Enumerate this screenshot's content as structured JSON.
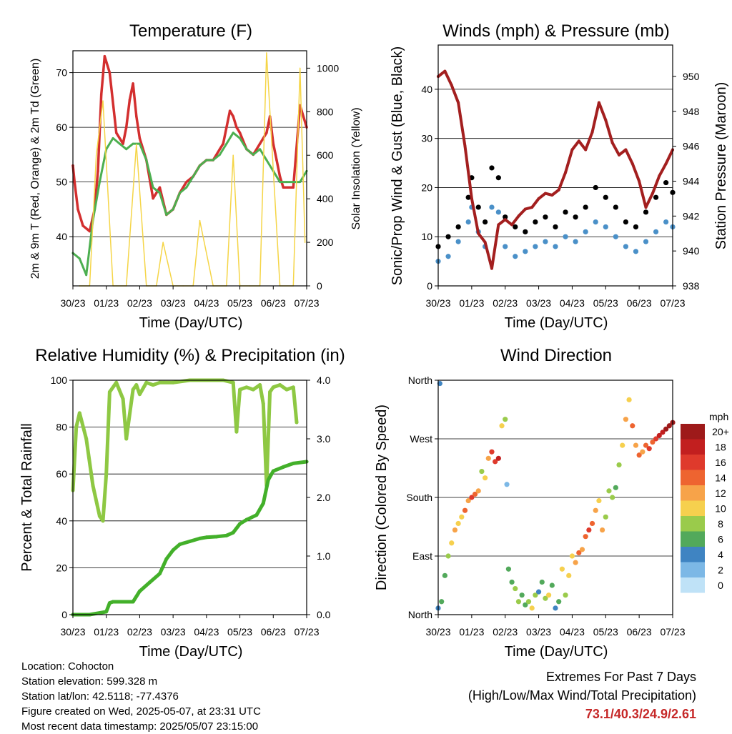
{
  "chart_data": [
    {
      "type": "line",
      "title": "Temperature (F)",
      "xlabel": "Time (Day/UTC)",
      "ylabel": "2m & 9m T (Red, Orange) & 2m Td (Green)",
      "ylabel_right": "Solar Insolation (Yellow)",
      "categories": [
        "30/23",
        "01/23",
        "02/23",
        "03/23",
        "04/23",
        "05/23",
        "06/23",
        "07/23"
      ],
      "ylim": [
        31,
        74
      ],
      "yticks": [
        40,
        50,
        60,
        70
      ],
      "ylim_right": [
        0,
        1080
      ],
      "yticks_right": [
        0,
        200,
        400,
        600,
        800,
        1000
      ],
      "grid": true,
      "series": [
        {
          "name": "2m T",
          "color": "#d32f2f",
          "x": [
            0,
            0.05,
            0.15,
            0.3,
            0.5,
            0.65,
            0.75,
            0.85,
            0.95,
            1.1,
            1.3,
            1.5,
            1.6,
            1.7,
            1.8,
            1.9,
            2.0,
            2.2,
            2.4,
            2.6,
            2.8,
            3.0,
            3.2,
            3.4,
            3.6,
            3.8,
            4.0,
            4.2,
            4.4,
            4.5,
            4.6,
            4.7,
            4.8,
            4.9,
            5.0,
            5.2,
            5.4,
            5.6,
            5.8,
            5.9,
            6.0,
            6.1,
            6.2,
            6.3,
            6.4,
            6.6,
            6.8,
            7.0
          ],
          "values": [
            53,
            50,
            45,
            42,
            41,
            45,
            52,
            66,
            73,
            70,
            59,
            57,
            60,
            65,
            68,
            62,
            58,
            54,
            47,
            49,
            44,
            45,
            48,
            50,
            51,
            53,
            54,
            54,
            56,
            57,
            60,
            63,
            62,
            60,
            59,
            56,
            55,
            57,
            59,
            62,
            57,
            54,
            51,
            49,
            49,
            49,
            64,
            60
          ]
        },
        {
          "name": "2m Td",
          "color": "#4caf50",
          "x": [
            0,
            0.2,
            0.4,
            0.6,
            0.8,
            1.0,
            1.2,
            1.4,
            1.6,
            1.8,
            2.0,
            2.2,
            2.4,
            2.6,
            2.8,
            3.0,
            3.2,
            3.4,
            3.6,
            3.8,
            4.0,
            4.2,
            4.4,
            4.6,
            4.8,
            5.0,
            5.2,
            5.4,
            5.6,
            5.8,
            6.0,
            6.2,
            6.4,
            6.6,
            6.8,
            7.0
          ],
          "values": [
            37,
            36,
            33,
            43,
            50,
            56,
            58,
            57,
            56,
            57,
            57,
            54,
            49,
            48,
            44,
            45,
            48,
            49,
            51,
            53,
            54,
            54,
            55,
            57,
            59,
            58,
            56,
            55,
            56,
            54,
            52,
            50,
            50,
            50,
            50,
            52
          ]
        },
        {
          "name": "Solar Insolation",
          "color": "#f5d547",
          "axis": "right",
          "x": [
            0.2,
            0.5,
            0.7,
            0.9,
            1.2,
            1.6,
            1.9,
            2.2,
            2.5,
            2.7,
            3.0,
            3.3,
            3.6,
            3.8,
            4.2,
            4.6,
            4.8,
            5.0,
            5.3,
            5.6,
            5.8,
            6.2,
            6.6,
            6.8,
            6.95
          ],
          "values": [
            0,
            0,
            600,
            850,
            0,
            0,
            650,
            0,
            0,
            200,
            0,
            0,
            0,
            300,
            0,
            0,
            600,
            0,
            0,
            0,
            1070,
            0,
            0,
            1000,
            200
          ]
        }
      ]
    },
    {
      "type": "scatter",
      "title": "Winds (mph) & Pressure (mb)",
      "xlabel": "Time (Day/UTC)",
      "ylabel": "Sonic/Prop Wind & Gust (Blue, Black)",
      "ylabel_right": "Station Pressure (Maroon)",
      "categories": [
        "30/23",
        "01/23",
        "02/23",
        "03/23",
        "04/23",
        "05/23",
        "06/23",
        "07/23"
      ],
      "ylim": [
        0,
        49
      ],
      "yticks": [
        0,
        10,
        20,
        30,
        40
      ],
      "ylim_right": [
        938,
        951.8
      ],
      "yticks_right": [
        938,
        940,
        942,
        944,
        946,
        948,
        950
      ],
      "grid": true,
      "series": [
        {
          "name": "Gust",
          "color": "#000000",
          "x": [
            0,
            0.3,
            0.6,
            0.9,
            1.0,
            1.2,
            1.4,
            1.6,
            1.8,
            2.0,
            2.3,
            2.6,
            2.9,
            3.2,
            3.5,
            3.8,
            4.1,
            4.4,
            4.7,
            5.0,
            5.3,
            5.6,
            5.9,
            6.2,
            6.5,
            6.8,
            7.0
          ],
          "values": [
            8,
            10,
            12,
            18,
            22,
            16,
            13,
            24,
            22,
            14,
            12,
            11,
            13,
            14,
            12,
            15,
            14,
            16,
            20,
            18,
            16,
            13,
            12,
            15,
            18,
            21,
            19
          ]
        },
        {
          "name": "Wind",
          "color": "#4a90c8",
          "x": [
            0,
            0.3,
            0.6,
            0.9,
            1.0,
            1.2,
            1.4,
            1.6,
            1.8,
            2.0,
            2.3,
            2.6,
            2.9,
            3.2,
            3.5,
            3.8,
            4.1,
            4.4,
            4.7,
            5.0,
            5.3,
            5.6,
            5.9,
            6.2,
            6.5,
            6.8,
            7.0
          ],
          "values": [
            5,
            6,
            9,
            13,
            16,
            11,
            8,
            16,
            15,
            8,
            6,
            7,
            8,
            9,
            8,
            10,
            9,
            11,
            13,
            12,
            10,
            8,
            7,
            9,
            11,
            13,
            12
          ]
        },
        {
          "name": "Station Pressure",
          "color": "#a31f1f",
          "axis": "right",
          "x": [
            0,
            0.2,
            0.4,
            0.6,
            0.8,
            1.0,
            1.2,
            1.4,
            1.6,
            1.8,
            2.0,
            2.2,
            2.4,
            2.6,
            2.8,
            3.0,
            3.2,
            3.4,
            3.6,
            3.8,
            4.0,
            4.2,
            4.4,
            4.6,
            4.8,
            5.0,
            5.2,
            5.4,
            5.6,
            5.8,
            6.0,
            6.2,
            6.4,
            6.6,
            6.8,
            7.0
          ],
          "values": [
            950,
            950.3,
            949.5,
            948.5,
            946,
            943,
            941,
            940.5,
            939,
            941.5,
            941.8,
            941.5,
            942,
            942.4,
            942.5,
            943,
            943.3,
            943.2,
            943.5,
            944.5,
            945.8,
            946.3,
            945.8,
            946.8,
            948.5,
            947.5,
            946.2,
            945.5,
            945.8,
            945,
            944,
            942.5,
            943.3,
            944.3,
            945,
            945.8
          ]
        }
      ]
    },
    {
      "type": "line",
      "title": "Relative Humidity (%) & Precipitation (in)",
      "xlabel": "Time (Day/UTC)",
      "ylabel": "Percent & Total Rainfall",
      "categories": [
        "30/23",
        "01/23",
        "02/23",
        "03/23",
        "04/23",
        "05/23",
        "06/23",
        "07/23"
      ],
      "ylim": [
        0,
        100
      ],
      "yticks": [
        0,
        20,
        40,
        60,
        80,
        100
      ],
      "ylim_right": [
        0.0,
        4.0
      ],
      "yticks_right": [
        "0.0",
        "1.0",
        "2.0",
        "3.0",
        "4.0"
      ],
      "grid": true,
      "series": [
        {
          "name": "Relative Humidity",
          "color": "#8ec843",
          "x": [
            0,
            0.1,
            0.2,
            0.4,
            0.6,
            0.8,
            0.9,
            1.0,
            1.1,
            1.3,
            1.5,
            1.6,
            1.8,
            1.9,
            2.0,
            2.2,
            2.4,
            2.6,
            3.0,
            3.5,
            4.0,
            4.5,
            4.8,
            4.9,
            5.0,
            5.2,
            5.4,
            5.6,
            5.7,
            5.8,
            5.9,
            6.0,
            6.2,
            6.4,
            6.6,
            6.7
          ],
          "values": [
            53,
            80,
            86,
            75,
            55,
            42,
            40,
            60,
            95,
            99,
            92,
            75,
            96,
            98,
            94,
            99,
            98,
            99,
            99,
            100,
            100,
            100,
            99,
            78,
            96,
            97,
            96,
            98,
            90,
            55,
            95,
            97,
            98,
            96,
            97,
            82
          ]
        },
        {
          "name": "Total Rainfall",
          "color": "#43b02a",
          "axis": "right",
          "x": [
            0,
            0.5,
            1.0,
            1.1,
            1.2,
            1.8,
            2.0,
            2.3,
            2.6,
            2.8,
            3.0,
            3.2,
            3.5,
            3.8,
            4.0,
            4.3,
            4.6,
            4.8,
            5.0,
            5.2,
            5.5,
            5.7,
            5.85,
            6.0,
            6.3,
            6.6,
            7.0
          ],
          "values": [
            0.0,
            0.0,
            0.05,
            0.2,
            0.22,
            0.22,
            0.4,
            0.55,
            0.7,
            0.95,
            1.1,
            1.2,
            1.25,
            1.3,
            1.32,
            1.33,
            1.35,
            1.4,
            1.55,
            1.62,
            1.7,
            1.9,
            2.3,
            2.45,
            2.52,
            2.58,
            2.61
          ]
        }
      ]
    },
    {
      "type": "scatter",
      "title": "Wind Direction",
      "xlabel": "Time (Day/UTC)",
      "ylabel": "Direction (Colored By Speed)",
      "categories": [
        "30/23",
        "01/23",
        "02/23",
        "03/23",
        "04/23",
        "05/23",
        "06/23",
        "07/23"
      ],
      "ylim": [
        0,
        360
      ],
      "yticks": [
        "North",
        "East",
        "South",
        "West",
        "North"
      ],
      "grid": true,
      "colorbar": {
        "title": "mph",
        "labels": [
          "20+",
          "18",
          "16",
          "14",
          "12",
          "10",
          "8",
          "6",
          "4",
          "2",
          "0"
        ],
        "colors": [
          "#9e1a1a",
          "#c21f1f",
          "#df3a2c",
          "#ee6430",
          "#f7a349",
          "#f6d04e",
          "#9acb4b",
          "#52a95b",
          "#3f84c2",
          "#7cb8e6",
          "#bfe2f7"
        ]
      },
      "series": [
        {
          "name": "Direction",
          "x": [
            0,
            0.05,
            0.1,
            0.2,
            0.3,
            0.4,
            0.5,
            0.6,
            0.7,
            0.8,
            0.9,
            1.0,
            1.1,
            1.2,
            1.3,
            1.4,
            1.5,
            1.6,
            1.7,
            1.8,
            1.9,
            2.0,
            2.05,
            2.1,
            2.2,
            2.3,
            2.4,
            2.5,
            2.6,
            2.7,
            2.8,
            2.9,
            3.0,
            3.1,
            3.2,
            3.3,
            3.4,
            3.5,
            3.6,
            3.7,
            3.8,
            3.9,
            4.0,
            4.1,
            4.2,
            4.3,
            4.4,
            4.5,
            4.6,
            4.7,
            4.8,
            4.9,
            5.0,
            5.1,
            5.2,
            5.3,
            5.4,
            5.5,
            5.6,
            5.7,
            5.8,
            5.9,
            6.0,
            6.1,
            6.2,
            6.3,
            6.4,
            6.5,
            6.6,
            6.7,
            6.8,
            6.9,
            7.0
          ],
          "values": [
            10,
            355,
            20,
            60,
            90,
            110,
            130,
            140,
            150,
            160,
            175,
            180,
            185,
            190,
            220,
            210,
            240,
            250,
            235,
            240,
            290,
            300,
            200,
            70,
            50,
            40,
            20,
            30,
            15,
            20,
            10,
            30,
            35,
            50,
            25,
            30,
            45,
            10,
            20,
            70,
            30,
            60,
            90,
            80,
            95,
            100,
            120,
            130,
            140,
            160,
            175,
            130,
            150,
            190,
            180,
            195,
            230,
            260,
            300,
            330,
            290,
            260,
            245,
            250,
            260,
            255,
            265,
            270,
            275,
            280,
            285,
            290,
            295
          ],
          "speeds": [
            4,
            4,
            6,
            6,
            8,
            10,
            12,
            10,
            10,
            14,
            12,
            16,
            14,
            12,
            8,
            10,
            12,
            16,
            16,
            18,
            10,
            8,
            2,
            6,
            6,
            8,
            8,
            6,
            6,
            8,
            10,
            8,
            4,
            6,
            8,
            10,
            6,
            4,
            6,
            10,
            8,
            10,
            10,
            12,
            14,
            12,
            14,
            16,
            14,
            12,
            10,
            12,
            8,
            8,
            8,
            6,
            8,
            10,
            12,
            10,
            14,
            12,
            14,
            12,
            14,
            16,
            14,
            16,
            18,
            18,
            20,
            20,
            20
          ]
        }
      ]
    }
  ],
  "info": {
    "location": "Location: Cohocton",
    "elevation": "Station elevation: 599.328 m",
    "latlon": "Station lat/lon: 42.5118; -77.4376",
    "created": "Figure created on Wed, 2025-05-07, at 23:31 UTC",
    "timestamp": "Most recent data timestamp: 2025/05/07 23:15:00"
  },
  "extremes": {
    "title": "Extremes For Past 7 Days",
    "subtitle": "(High/Low/Max Wind/Total Precipitation)",
    "values": "73.1/40.3/24.9/2.61"
  }
}
